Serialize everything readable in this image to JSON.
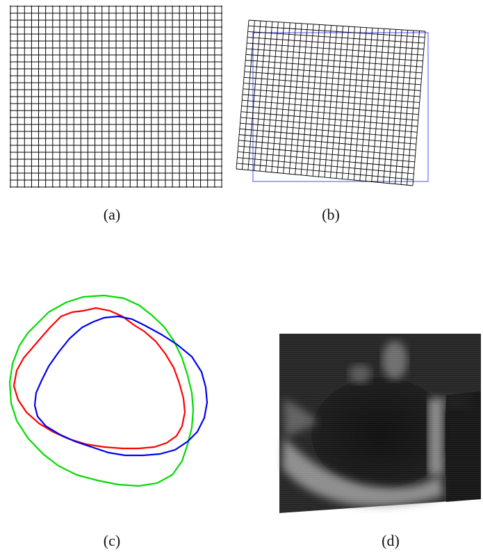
{
  "figure": {
    "panels": [
      {
        "id": "a",
        "label": "(a)",
        "description_name": "regular-grid"
      },
      {
        "id": "b",
        "label": "(b)",
        "description_name": "deformed-grid"
      },
      {
        "id": "c",
        "label": "(c)",
        "description_name": "contours"
      },
      {
        "id": "d",
        "label": "(d)",
        "description_name": "ultrasound-image"
      }
    ],
    "colors": {
      "grid_line": "#000000",
      "frame": "#6b6bff",
      "contour_green": "#00dd00",
      "contour_red": "#ff0000",
      "contour_blue": "#0000ee",
      "ultrasound_background": "#141414"
    }
  }
}
